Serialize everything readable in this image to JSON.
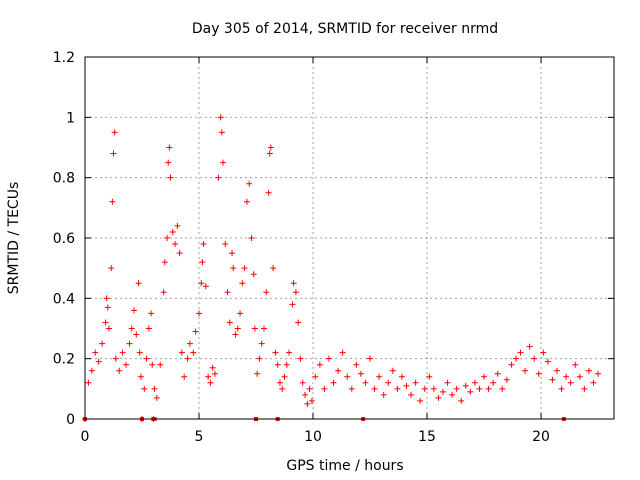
{
  "chart_data": {
    "type": "scatter",
    "title": "Day 305 of 2014, SRMTID for receiver nrmd",
    "xlabel": "GPS time / hours",
    "ylabel": "SRMTID / TECUs",
    "xlim": [
      0,
      23.2
    ],
    "ylim": [
      0,
      1.2
    ],
    "x_ticks": [
      0,
      5,
      10,
      15,
      20
    ],
    "x_tick_labels": [
      "0",
      "5",
      "10",
      "15",
      "20"
    ],
    "y_ticks": [
      0,
      0.2,
      0.4,
      0.6,
      0.8,
      1,
      1.2
    ],
    "y_tick_labels": [
      "0",
      "0.2",
      "0.4",
      "0.6",
      "0.8",
      "1",
      "1.2"
    ],
    "grid": true,
    "marker": "+",
    "color": "#ff0000",
    "series": [
      {
        "name": "SRMTID",
        "points": [
          [
            0.0,
            0.0
          ],
          [
            0.15,
            0.12
          ],
          [
            0.3,
            0.16
          ],
          [
            0.45,
            0.22
          ],
          [
            0.6,
            0.19
          ],
          [
            0.75,
            0.25
          ],
          [
            0.9,
            0.32
          ],
          [
            0.95,
            0.4
          ],
          [
            1.0,
            0.37
          ],
          [
            1.05,
            0.3
          ],
          [
            1.15,
            0.5
          ],
          [
            1.2,
            0.72
          ],
          [
            1.25,
            0.88
          ],
          [
            1.3,
            0.95
          ],
          [
            1.35,
            0.2
          ],
          [
            1.5,
            0.16
          ],
          [
            1.65,
            0.22
          ],
          [
            1.8,
            0.18
          ],
          [
            1.95,
            0.25
          ],
          [
            2.05,
            0.3
          ],
          [
            2.15,
            0.36
          ],
          [
            2.25,
            0.28
          ],
          [
            2.35,
            0.45
          ],
          [
            2.4,
            0.22
          ],
          [
            2.45,
            0.14
          ],
          [
            2.5,
            0.0
          ],
          [
            2.6,
            0.1
          ],
          [
            2.7,
            0.2
          ],
          [
            2.8,
            0.3
          ],
          [
            2.9,
            0.35
          ],
          [
            2.95,
            0.18
          ],
          [
            3.0,
            0.0
          ],
          [
            3.05,
            0.1
          ],
          [
            3.15,
            0.07
          ],
          [
            3.3,
            0.18
          ],
          [
            3.45,
            0.42
          ],
          [
            3.5,
            0.52
          ],
          [
            3.6,
            0.6
          ],
          [
            3.65,
            0.85
          ],
          [
            3.7,
            0.9
          ],
          [
            3.75,
            0.8
          ],
          [
            3.85,
            0.62
          ],
          [
            3.95,
            0.58
          ],
          [
            4.05,
            0.64
          ],
          [
            4.15,
            0.55
          ],
          [
            4.25,
            0.22
          ],
          [
            4.35,
            0.14
          ],
          [
            4.5,
            0.2
          ],
          [
            4.6,
            0.25
          ],
          [
            4.75,
            0.22
          ],
          [
            4.85,
            0.29
          ],
          [
            5.0,
            0.35
          ],
          [
            5.1,
            0.45
          ],
          [
            5.15,
            0.52
          ],
          [
            5.2,
            0.58
          ],
          [
            5.3,
            0.44
          ],
          [
            5.4,
            0.14
          ],
          [
            5.5,
            0.12
          ],
          [
            5.6,
            0.17
          ],
          [
            5.7,
            0.15
          ],
          [
            5.85,
            0.8
          ],
          [
            5.95,
            1.0
          ],
          [
            6.0,
            0.95
          ],
          [
            6.05,
            0.85
          ],
          [
            6.15,
            0.58
          ],
          [
            6.25,
            0.42
          ],
          [
            6.35,
            0.32
          ],
          [
            6.45,
            0.55
          ],
          [
            6.5,
            0.5
          ],
          [
            6.6,
            0.28
          ],
          [
            6.7,
            0.3
          ],
          [
            6.8,
            0.35
          ],
          [
            6.9,
            0.45
          ],
          [
            7.0,
            0.5
          ],
          [
            7.1,
            0.72
          ],
          [
            7.2,
            0.78
          ],
          [
            7.3,
            0.6
          ],
          [
            7.4,
            0.48
          ],
          [
            7.45,
            0.3
          ],
          [
            7.55,
            0.15
          ],
          [
            7.65,
            0.2
          ],
          [
            7.75,
            0.25
          ],
          [
            7.85,
            0.3
          ],
          [
            7.95,
            0.42
          ],
          [
            8.05,
            0.75
          ],
          [
            8.1,
            0.88
          ],
          [
            8.15,
            0.9
          ],
          [
            8.25,
            0.5
          ],
          [
            8.35,
            0.22
          ],
          [
            8.45,
            0.18
          ],
          [
            8.55,
            0.12
          ],
          [
            8.65,
            0.1
          ],
          [
            8.75,
            0.14
          ],
          [
            8.85,
            0.18
          ],
          [
            8.95,
            0.22
          ],
          [
            9.1,
            0.38
          ],
          [
            9.15,
            0.45
          ],
          [
            9.25,
            0.42
          ],
          [
            9.35,
            0.32
          ],
          [
            9.45,
            0.2
          ],
          [
            9.55,
            0.12
          ],
          [
            9.65,
            0.08
          ],
          [
            9.75,
            0.05
          ],
          [
            9.85,
            0.1
          ],
          [
            9.95,
            0.06
          ],
          [
            10.1,
            0.14
          ],
          [
            10.3,
            0.18
          ],
          [
            10.5,
            0.1
          ],
          [
            10.7,
            0.2
          ],
          [
            10.9,
            0.12
          ],
          [
            11.1,
            0.16
          ],
          [
            11.3,
            0.22
          ],
          [
            11.5,
            0.14
          ],
          [
            11.7,
            0.1
          ],
          [
            11.9,
            0.18
          ],
          [
            12.1,
            0.15
          ],
          [
            12.3,
            0.12
          ],
          [
            12.5,
            0.2
          ],
          [
            12.7,
            0.1
          ],
          [
            12.9,
            0.14
          ],
          [
            13.1,
            0.08
          ],
          [
            13.3,
            0.12
          ],
          [
            13.5,
            0.16
          ],
          [
            13.7,
            0.1
          ],
          [
            13.9,
            0.14
          ],
          [
            14.1,
            0.11
          ],
          [
            14.3,
            0.08
          ],
          [
            14.5,
            0.12
          ],
          [
            14.7,
            0.06
          ],
          [
            14.9,
            0.1
          ],
          [
            15.1,
            0.14
          ],
          [
            15.3,
            0.1
          ],
          [
            15.5,
            0.07
          ],
          [
            15.7,
            0.09
          ],
          [
            15.9,
            0.12
          ],
          [
            16.1,
            0.08
          ],
          [
            16.3,
            0.1
          ],
          [
            16.5,
            0.06
          ],
          [
            16.7,
            0.11
          ],
          [
            16.9,
            0.09
          ],
          [
            17.1,
            0.12
          ],
          [
            17.3,
            0.1
          ],
          [
            17.5,
            0.14
          ],
          [
            17.7,
            0.1
          ],
          [
            17.9,
            0.12
          ],
          [
            18.1,
            0.15
          ],
          [
            18.3,
            0.1
          ],
          [
            18.5,
            0.13
          ],
          [
            18.7,
            0.18
          ],
          [
            18.9,
            0.2
          ],
          [
            19.1,
            0.22
          ],
          [
            19.3,
            0.16
          ],
          [
            19.5,
            0.24
          ],
          [
            19.7,
            0.2
          ],
          [
            19.9,
            0.15
          ],
          [
            20.1,
            0.22
          ],
          [
            20.3,
            0.19
          ],
          [
            20.5,
            0.13
          ],
          [
            20.7,
            0.16
          ],
          [
            20.9,
            0.1
          ],
          [
            21.1,
            0.14
          ],
          [
            21.3,
            0.12
          ],
          [
            21.5,
            0.18
          ],
          [
            21.7,
            0.14
          ],
          [
            21.9,
            0.1
          ],
          [
            22.1,
            0.16
          ],
          [
            22.3,
            0.12
          ],
          [
            22.5,
            0.15
          ]
        ]
      }
    ],
    "zero_markers": [
      0.0,
      2.5,
      3.0,
      3.05,
      7.5,
      8.45,
      12.2,
      21.0
    ]
  }
}
